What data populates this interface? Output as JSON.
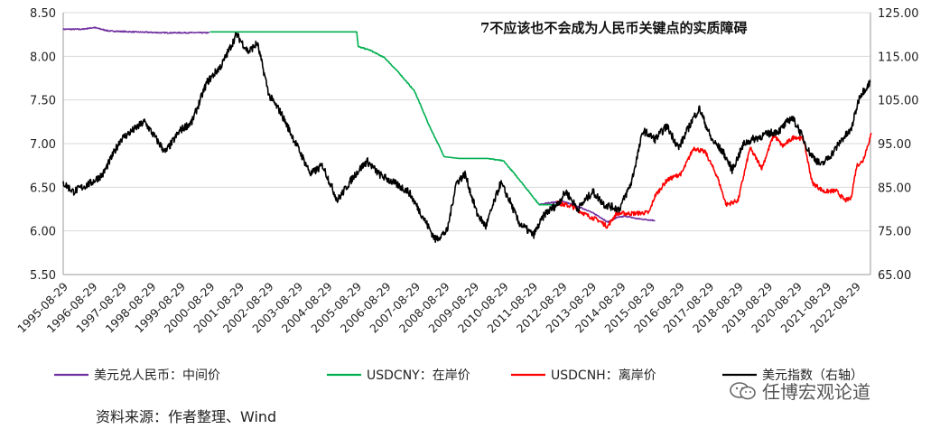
{
  "chart_data": {
    "type": "line",
    "title": "7不应该也不会成为人民币关键点的实质障碍",
    "x_ticks": [
      "1995-08-29",
      "1996-08-29",
      "1997-08-29",
      "1998-08-29",
      "1999-08-29",
      "2000-08-29",
      "2001-08-29",
      "2002-08-29",
      "2003-08-29",
      "2004-08-29",
      "2005-08-29",
      "2006-08-29",
      "2007-08-29",
      "2008-08-29",
      "2009-08-29",
      "2010-08-29",
      "2011-08-29",
      "2012-08-29",
      "2013-08-29",
      "2014-08-29",
      "2015-08-29",
      "2016-08-29",
      "2017-08-29",
      "2018-08-29",
      "2019-08-29",
      "2020-08-29",
      "2021-08-29",
      "2022-08-29"
    ],
    "y_left": {
      "min": 5.5,
      "max": 8.5,
      "ticks": [
        "5.50",
        "6.00",
        "6.50",
        "7.00",
        "7.50",
        "8.00",
        "8.50"
      ]
    },
    "y_right": {
      "min": 65,
      "max": 125,
      "ticks": [
        "65.00",
        "75.00",
        "85.00",
        "95.00",
        "105.00",
        "115.00",
        "125.00"
      ]
    },
    "series": [
      {
        "name": "美元兑人民币：中间价",
        "color": "#7030a0",
        "axis": "left",
        "points": [
          [
            1995.66,
            8.31
          ],
          [
            1996.3,
            8.31
          ],
          [
            1996.7,
            8.33
          ],
          [
            1997.2,
            8.29
          ],
          [
            1998.0,
            8.28
          ],
          [
            1999.0,
            8.27
          ],
          [
            2000.0,
            8.27
          ],
          [
            2000.6,
            8.27
          ],
          [
            2011.7,
            6.3
          ],
          [
            2012.0,
            6.32
          ],
          [
            2012.5,
            6.34
          ],
          [
            2012.9,
            6.29
          ],
          [
            2013.3,
            6.24
          ],
          [
            2013.7,
            6.17
          ],
          [
            2014.0,
            6.1
          ],
          [
            2014.3,
            6.15
          ],
          [
            2014.6,
            6.17
          ],
          [
            2015.0,
            6.14
          ],
          [
            2015.6,
            6.12
          ]
        ]
      },
      {
        "name": "USDCNY：在岸价",
        "color": "#00b050",
        "axis": "left",
        "points": [
          [
            2000.6,
            8.28
          ],
          [
            2002.0,
            8.28
          ],
          [
            2003.0,
            8.28
          ],
          [
            2004.0,
            8.28
          ],
          [
            2005.55,
            8.28
          ],
          [
            2005.6,
            8.11
          ],
          [
            2006.0,
            8.07
          ],
          [
            2006.5,
            7.98
          ],
          [
            2007.0,
            7.8
          ],
          [
            2007.5,
            7.6
          ],
          [
            2008.0,
            7.2
          ],
          [
            2008.5,
            6.85
          ],
          [
            2009.0,
            6.83
          ],
          [
            2009.5,
            6.83
          ],
          [
            2010.0,
            6.83
          ],
          [
            2010.5,
            6.8
          ],
          [
            2011.0,
            6.6
          ],
          [
            2011.7,
            6.3
          ],
          [
            2012.3,
            6.3
          ]
        ]
      },
      {
        "name": "USDCNH：离岸价",
        "color": "#ff0000",
        "axis": "left",
        "points": [
          [
            2012.3,
            6.32
          ],
          [
            2012.8,
            6.28
          ],
          [
            2013.3,
            6.18
          ],
          [
            2013.7,
            6.12
          ],
          [
            2014.0,
            6.05
          ],
          [
            2014.3,
            6.2
          ],
          [
            2014.9,
            6.2
          ],
          [
            2015.4,
            6.21
          ],
          [
            2015.6,
            6.4
          ],
          [
            2016.0,
            6.58
          ],
          [
            2016.5,
            6.66
          ],
          [
            2016.9,
            6.95
          ],
          [
            2017.3,
            6.9
          ],
          [
            2017.7,
            6.62
          ],
          [
            2018.0,
            6.3
          ],
          [
            2018.4,
            6.35
          ],
          [
            2018.8,
            6.95
          ],
          [
            2019.2,
            6.72
          ],
          [
            2019.6,
            7.1
          ],
          [
            2019.9,
            6.97
          ],
          [
            2020.3,
            7.08
          ],
          [
            2020.6,
            7.05
          ],
          [
            2020.9,
            6.55
          ],
          [
            2021.3,
            6.45
          ],
          [
            2021.7,
            6.46
          ],
          [
            2022.0,
            6.35
          ],
          [
            2022.2,
            6.37
          ],
          [
            2022.4,
            6.75
          ],
          [
            2022.6,
            6.8
          ],
          [
            2022.9,
            7.12
          ]
        ]
      },
      {
        "name": "美元指数（右轴）",
        "color": "#000000",
        "axis": "right",
        "points": [
          [
            1995.66,
            86
          ],
          [
            1996.0,
            84
          ],
          [
            1996.6,
            86
          ],
          [
            1997.0,
            88
          ],
          [
            1997.6,
            96
          ],
          [
            1998.0,
            98
          ],
          [
            1998.4,
            100
          ],
          [
            1998.8,
            96
          ],
          [
            1999.1,
            93
          ],
          [
            1999.6,
            98
          ],
          [
            2000.0,
            100
          ],
          [
            2000.5,
            109
          ],
          [
            2001.0,
            113
          ],
          [
            2001.5,
            120
          ],
          [
            2001.9,
            116
          ],
          [
            2002.2,
            118
          ],
          [
            2002.6,
            106
          ],
          [
            2003.0,
            102
          ],
          [
            2003.5,
            95
          ],
          [
            2004.0,
            88
          ],
          [
            2004.4,
            90
          ],
          [
            2004.9,
            82
          ],
          [
            2005.5,
            88
          ],
          [
            2005.9,
            91
          ],
          [
            2006.3,
            88
          ],
          [
            2006.8,
            86
          ],
          [
            2007.3,
            84
          ],
          [
            2007.8,
            78
          ],
          [
            2008.2,
            73
          ],
          [
            2008.6,
            75
          ],
          [
            2008.9,
            86
          ],
          [
            2009.2,
            88
          ],
          [
            2009.6,
            79
          ],
          [
            2009.9,
            76
          ],
          [
            2010.4,
            86
          ],
          [
            2010.7,
            82
          ],
          [
            2011.0,
            77
          ],
          [
            2011.5,
            74
          ],
          [
            2011.9,
            79
          ],
          [
            2012.3,
            81
          ],
          [
            2012.6,
            84
          ],
          [
            2013.0,
            80
          ],
          [
            2013.5,
            84
          ],
          [
            2013.9,
            81
          ],
          [
            2014.4,
            80
          ],
          [
            2014.8,
            86
          ],
          [
            2015.2,
            98
          ],
          [
            2015.6,
            96
          ],
          [
            2016.0,
            99
          ],
          [
            2016.4,
            94
          ],
          [
            2016.9,
            101
          ],
          [
            2017.1,
            103
          ],
          [
            2017.5,
            96
          ],
          [
            2017.9,
            93
          ],
          [
            2018.2,
            89
          ],
          [
            2018.6,
            95
          ],
          [
            2018.9,
            96
          ],
          [
            2019.3,
            97
          ],
          [
            2019.8,
            98
          ],
          [
            2020.2,
            101
          ],
          [
            2020.4,
            99
          ],
          [
            2020.8,
            93
          ],
          [
            2021.2,
            90
          ],
          [
            2021.6,
            93
          ],
          [
            2021.9,
            96
          ],
          [
            2022.2,
            98
          ],
          [
            2022.5,
            106
          ],
          [
            2022.85,
            109
          ]
        ]
      }
    ]
  },
  "legend": [
    {
      "label": "美元兑人民币：中间价",
      "color": "#7030a0"
    },
    {
      "label": "USDCNY：在岸价",
      "color": "#00b050"
    },
    {
      "label": "USDCNH：离岸价",
      "color": "#ff0000"
    },
    {
      "label": "美元指数（右轴）",
      "color": "#000000"
    }
  ],
  "source": "资料来源：作者整理、Wind",
  "watermark": "任博宏观论道"
}
